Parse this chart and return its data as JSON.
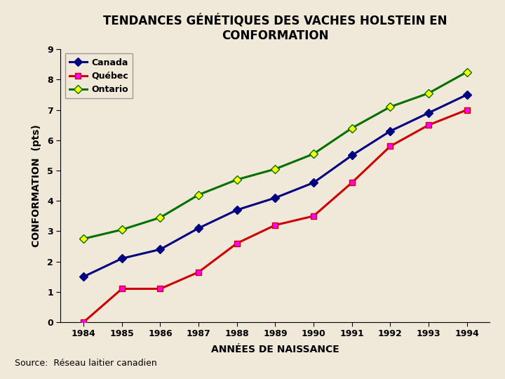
{
  "title": "TENDANCES GÉNÉTIQUES DES VACHES HOLSTEIN EN\nCONFORMATION",
  "xlabel": "ANNÉES DE NAISSANCE",
  "ylabel": "CONFORMATION  (pts)",
  "years": [
    1984,
    1985,
    1986,
    1987,
    1988,
    1989,
    1990,
    1991,
    1992,
    1993,
    1994
  ],
  "canada": [
    1.5,
    2.1,
    2.4,
    3.1,
    3.7,
    4.1,
    4.6,
    5.5,
    6.3,
    6.9,
    7.5
  ],
  "quebec": [
    0.0,
    1.1,
    1.1,
    1.65,
    2.6,
    3.2,
    3.5,
    4.6,
    5.8,
    6.5,
    7.0
  ],
  "ontario": [
    2.75,
    3.05,
    3.45,
    4.2,
    4.7,
    5.05,
    5.55,
    6.4,
    7.1,
    7.55,
    8.25
  ],
  "canada_line_color": "#000080",
  "canada_marker_color": "#000080",
  "quebec_line_color": "#CC0000",
  "quebec_marker_color": "#FF00FF",
  "ontario_line_color": "#007000",
  "ontario_marker_color": "#FFFF00",
  "background_color": "#F0E8D8",
  "plot_bg_color": "#F0E8D8",
  "source_text": "Source:  Réseau laitier canadien",
  "source_box_color": "#FFFFCC",
  "ylim": [
    0,
    9
  ],
  "yticks": [
    0,
    1,
    2,
    3,
    4,
    5,
    6,
    7,
    8,
    9
  ],
  "title_fontsize": 12,
  "axis_label_fontsize": 10,
  "tick_fontsize": 9,
  "legend_fontsize": 9
}
